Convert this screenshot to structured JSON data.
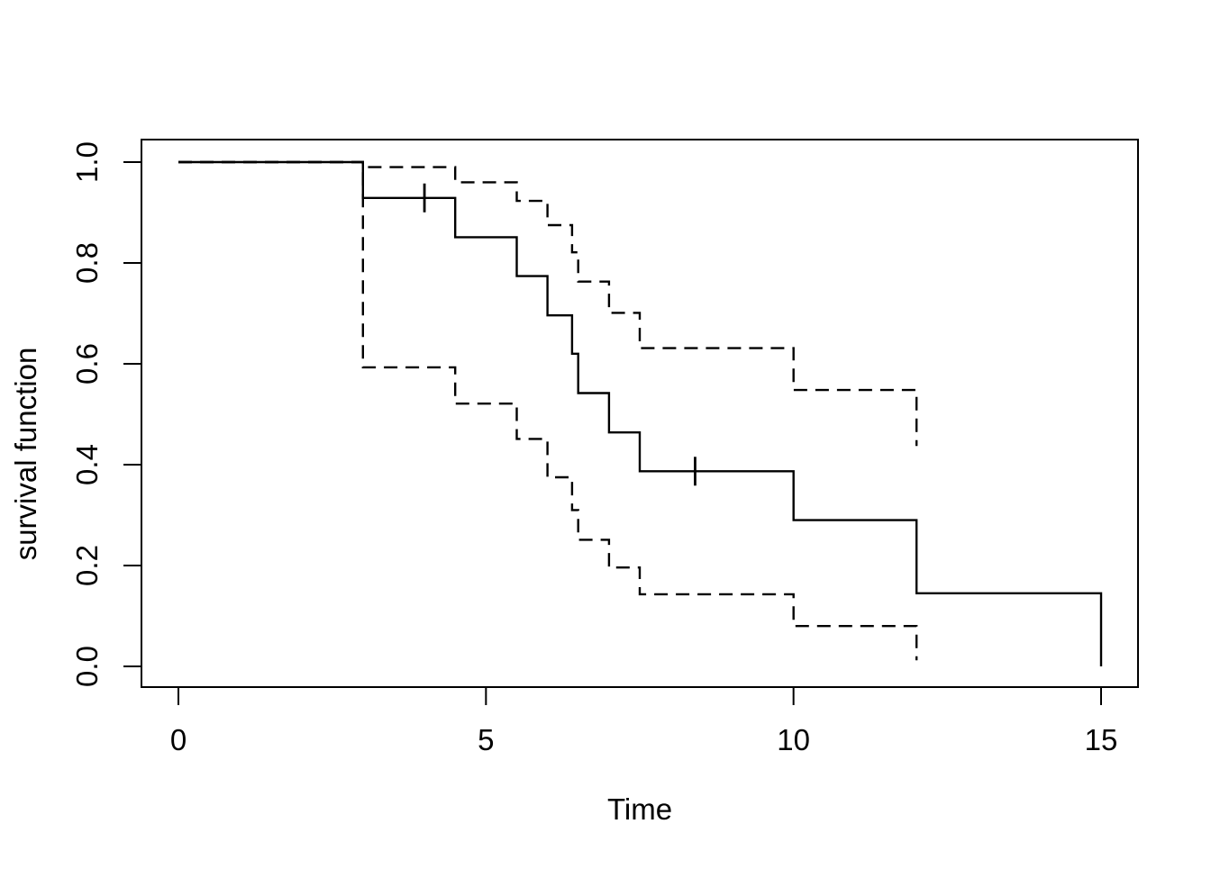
{
  "chart_data": {
    "type": "line",
    "subtype": "kaplan-meier-step",
    "title": "",
    "xlabel": "Time",
    "ylabel": "survival function",
    "xlim": [
      0,
      15
    ],
    "ylim": [
      0,
      1
    ],
    "grid": false,
    "legend": null,
    "step_interpolation": "hv",
    "x_ticks": {
      "values": [
        0,
        5,
        10,
        15
      ],
      "labels": [
        "0",
        "5",
        "10",
        "15"
      ]
    },
    "y_ticks": {
      "values": [
        0,
        0.2,
        0.4,
        0.6,
        0.8,
        1.0
      ],
      "labels": [
        "0.0",
        "0.2",
        "0.4",
        "0.6",
        "0.8",
        "1.0"
      ]
    },
    "series": [
      {
        "name": "survival estimate",
        "style": "solid",
        "steps": [
          [
            0,
            1.0
          ],
          [
            3,
            0.929
          ],
          [
            4.5,
            0.851
          ],
          [
            5.5,
            0.774
          ],
          [
            6,
            0.696
          ],
          [
            6.4,
            0.62
          ],
          [
            6.5,
            0.542
          ],
          [
            7,
            0.464
          ],
          [
            7.5,
            0.387
          ],
          [
            10,
            0.29
          ],
          [
            12,
            0.145
          ],
          [
            15,
            0.0
          ]
        ]
      },
      {
        "name": "upper 95% confidence bound",
        "style": "dashed",
        "steps": [
          [
            0,
            1.0
          ],
          [
            3,
            0.99
          ],
          [
            4.5,
            0.96
          ],
          [
            5.5,
            0.923
          ],
          [
            6,
            0.875
          ],
          [
            6.4,
            0.821
          ],
          [
            6.5,
            0.763
          ],
          [
            7,
            0.701
          ],
          [
            7.5,
            0.631
          ],
          [
            10,
            0.548
          ],
          [
            12,
            0.437
          ]
        ]
      },
      {
        "name": "lower 95% confidence bound",
        "style": "dashed",
        "steps": [
          [
            0,
            1.0
          ],
          [
            3,
            0.593
          ],
          [
            4.5,
            0.521
          ],
          [
            5.5,
            0.451
          ],
          [
            6,
            0.375
          ],
          [
            6.4,
            0.31
          ],
          [
            6.5,
            0.251
          ],
          [
            7,
            0.196
          ],
          [
            7.5,
            0.143
          ],
          [
            10,
            0.08
          ],
          [
            12,
            0.012
          ]
        ]
      }
    ],
    "censor_marks": [
      [
        4,
        0.929
      ],
      [
        8.4,
        0.387
      ]
    ],
    "colors": {
      "line": "#000000",
      "background": "#ffffff"
    }
  }
}
